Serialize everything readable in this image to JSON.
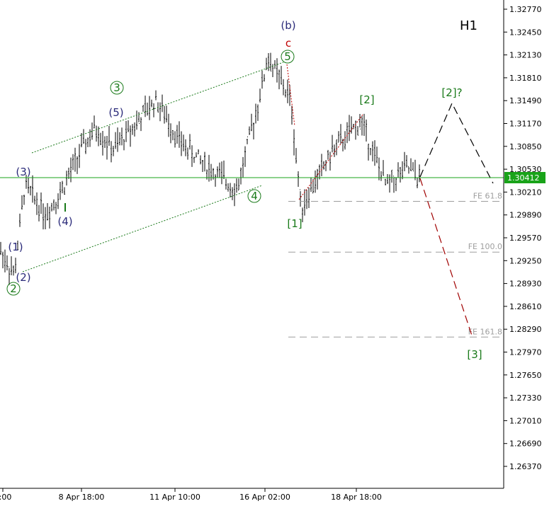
{
  "chart_data": {
    "type": "candlestick-ohlc",
    "symbol_timeframe": "H1",
    "current_price": "1.30412",
    "y_ticks": [
      "1.32770",
      "1.32450",
      "1.32130",
      "1.31810",
      "1.31490",
      "1.31170",
      "1.30850",
      "1.30530",
      "1.30210",
      "1.29890",
      "1.29570",
      "1.29250",
      "1.28930",
      "1.28610",
      "1.28290",
      "1.27970",
      "1.27650",
      "1.27330",
      "1.27010",
      "1.26690",
      "1.26370"
    ],
    "x_ticks": [
      "2:00",
      "8 Apr 18:00",
      "11 Apr 10:00",
      "16 Apr 02:00",
      "18 Apr 18:00"
    ],
    "fib_levels": [
      {
        "label": "FE 61.8",
        "price": 1.3008
      },
      {
        "label": "FE 100.0",
        "price": 1.2937
      },
      {
        "label": "FE 161.8",
        "price": 1.2818
      }
    ],
    "wave_labels": [
      {
        "text": "(b)",
        "color": "#2b2b7a"
      },
      {
        "text": "c",
        "color": "#c00000"
      },
      {
        "text": "5",
        "color": "#1a7a1a",
        "circled": true
      },
      {
        "text": "3",
        "color": "#1a7a1a",
        "circled": true
      },
      {
        "text": "(5)",
        "color": "#2b2b7a"
      },
      {
        "text": "(3)",
        "color": "#2b2b7a"
      },
      {
        "text": "(4)",
        "color": "#2b2b7a"
      },
      {
        "text": "(1)",
        "color": "#2b2b7a"
      },
      {
        "text": "(2)",
        "color": "#2b2b7a"
      },
      {
        "text": "2",
        "color": "#1a7a1a",
        "circled": true
      },
      {
        "text": "4",
        "color": "#1a7a1a",
        "circled": true
      },
      {
        "text": "[1]",
        "color": "#1a7a1a"
      },
      {
        "text": "[2]",
        "color": "#1a7a1a"
      },
      {
        "text": "[2]?",
        "color": "#1a7a1a"
      },
      {
        "text": "[3]",
        "color": "#1a7a1a"
      }
    ],
    "price_series_points": [
      {
        "t": "Apr 3",
        "p": 1.294
      },
      {
        "t": "Apr 4",
        "p": 1.2905
      },
      {
        "t": "Apr 5",
        "p": 1.303
      },
      {
        "t": "Apr 6",
        "p": 1.299
      },
      {
        "t": "Apr 8 00:00",
        "p": 1.302
      },
      {
        "t": "Apr 8 18:00",
        "p": 1.308
      },
      {
        "t": "Apr 9",
        "p": 1.311
      },
      {
        "t": "Apr 10",
        "p": 1.308
      },
      {
        "t": "Apr 11 10:00",
        "p": 1.315
      },
      {
        "t": "Apr 12",
        "p": 1.309
      },
      {
        "t": "Apr 13",
        "p": 1.305
      },
      {
        "t": "Apr 15",
        "p": 1.3025
      },
      {
        "t": "Apr 16 00:00",
        "p": 1.317
      },
      {
        "t": "Apr 16 02:00",
        "p": 1.321
      },
      {
        "t": "Apr 16 12:00",
        "p": 1.315
      },
      {
        "t": "Apr 17",
        "p": 1.3
      },
      {
        "t": "Apr 18",
        "p": 1.308
      },
      {
        "t": "Apr 18 18:00",
        "p": 1.312
      },
      {
        "t": "Apr 19",
        "p": 1.303
      },
      {
        "t": "Apr 20",
        "p": 1.3055
      },
      {
        "t": "Apr 21",
        "p": 1.304
      }
    ],
    "colors": {
      "current_line": "#19a319",
      "badge": "#19a319",
      "wave_green": "#1a7a1a",
      "wave_navy": "#2b2b7a",
      "wave_red": "#c00000",
      "candle": "#000000",
      "fib_line": "#9e9e9e",
      "projection_black": "#000000",
      "projection_red": "#a00000"
    }
  }
}
